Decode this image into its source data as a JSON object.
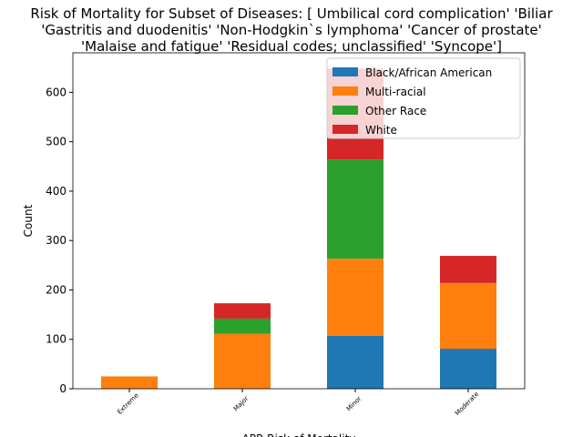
{
  "chart_data": {
    "type": "stacked_bar",
    "title": [
      "Risk of Mortality for Subset of Diseases: [ Umbilical cord complication' 'Biliar",
      "'Gastritis and duodenitis' 'Non-Hodgkin`s lymphoma' 'Cancer of prostate'",
      "'Malaise and fatigue' 'Residual codes; unclassified' 'Syncope']"
    ],
    "x_label": "APR Risk of Mortality",
    "y_label": "Count",
    "categories": [
      "Extreme",
      "Major",
      "Minor",
      "Moderate"
    ],
    "series": [
      {
        "name": "Black/African American",
        "color": "#1f77b4",
        "values": [
          0,
          0,
          107,
          81
        ]
      },
      {
        "name": "Multi-racial",
        "color": "#ff7f0e",
        "values": [
          25,
          111,
          156,
          133
        ]
      },
      {
        "name": "Other Race",
        "color": "#2ca02c",
        "values": [
          0,
          31,
          201,
          0
        ]
      },
      {
        "name": "White",
        "color": "#d62728",
        "values": [
          0,
          31,
          184,
          55
        ]
      }
    ],
    "ylim": [
      0,
      680
    ],
    "yticks": [
      0,
      100,
      200,
      300,
      400,
      500,
      600
    ],
    "legend": "upper right"
  }
}
